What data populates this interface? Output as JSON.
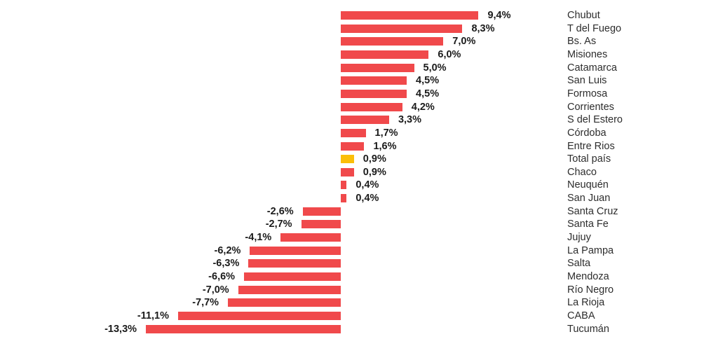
{
  "chart_data": {
    "type": "bar",
    "orientation": "horizontal",
    "title": "",
    "xlabel": "",
    "ylabel": "",
    "unit": "%",
    "decimal_separator": ",",
    "xlim": [
      -14,
      10
    ],
    "grid": false,
    "legend_position": "none",
    "value_labels": "at bar ends, bold",
    "category_labels_position": "right column",
    "highlight_category": "Total país",
    "colors": {
      "bar": "#F0494B",
      "highlight_bar": "#FBBE08",
      "value_label_text": "#1B1B1B",
      "category_label_text": "#2D2D2D",
      "background": "#FFFFFF"
    },
    "rows": [
      {
        "label": "Chubut",
        "value": 9.4,
        "display": "9,4%",
        "highlight": false
      },
      {
        "label": "T del Fuego",
        "value": 8.3,
        "display": "8,3%",
        "highlight": false
      },
      {
        "label": "Bs. As",
        "value": 7.0,
        "display": "7,0%",
        "highlight": false
      },
      {
        "label": "Misiones",
        "value": 6.0,
        "display": "6,0%",
        "highlight": false
      },
      {
        "label": "Catamarca",
        "value": 5.0,
        "display": "5,0%",
        "highlight": false
      },
      {
        "label": "San Luis",
        "value": 4.5,
        "display": "4,5%",
        "highlight": false
      },
      {
        "label": "Formosa",
        "value": 4.5,
        "display": "4,5%",
        "highlight": false
      },
      {
        "label": "Corrientes",
        "value": 4.2,
        "display": "4,2%",
        "highlight": false
      },
      {
        "label": "S del Estero",
        "value": 3.3,
        "display": "3,3%",
        "highlight": false
      },
      {
        "label": "Córdoba",
        "value": 1.7,
        "display": "1,7%",
        "highlight": false
      },
      {
        "label": "Entre Rios",
        "value": 1.6,
        "display": "1,6%",
        "highlight": false
      },
      {
        "label": "Total país",
        "value": 0.9,
        "display": "0,9%",
        "highlight": true
      },
      {
        "label": "Chaco",
        "value": 0.9,
        "display": "0,9%",
        "highlight": false
      },
      {
        "label": "Neuquén",
        "value": 0.4,
        "display": "0,4%",
        "highlight": false
      },
      {
        "label": "San Juan",
        "value": 0.4,
        "display": "0,4%",
        "highlight": false
      },
      {
        "label": "Santa Cruz",
        "value": -2.6,
        "display": "-2,6%",
        "highlight": false
      },
      {
        "label": "Santa Fe",
        "value": -2.7,
        "display": "-2,7%",
        "highlight": false
      },
      {
        "label": "Jujuy",
        "value": -4.1,
        "display": "-4,1%",
        "highlight": false
      },
      {
        "label": "La Pampa",
        "value": -6.2,
        "display": "-6,2%",
        "highlight": false
      },
      {
        "label": "Salta",
        "value": -6.3,
        "display": "-6,3%",
        "highlight": false
      },
      {
        "label": "Mendoza",
        "value": -6.6,
        "display": "-6,6%",
        "highlight": false
      },
      {
        "label": "Río Negro",
        "value": -7.0,
        "display": "-7,0%",
        "highlight": false
      },
      {
        "label": "La Rioja",
        "value": -7.7,
        "display": "-7,7%",
        "highlight": false
      },
      {
        "label": "CABA",
        "value": -11.1,
        "display": "-11,1%",
        "highlight": false
      },
      {
        "label": "Tucumán",
        "value": -13.3,
        "display": "-13,3%",
        "highlight": false
      }
    ]
  }
}
